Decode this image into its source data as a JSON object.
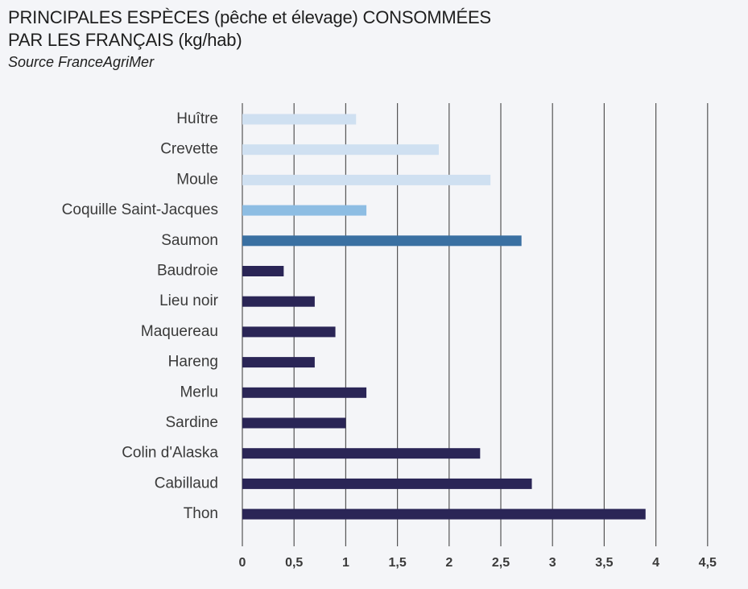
{
  "header": {
    "title_line_1": "PRINCIPALES ESPÈCES (pêche et élevage) CONSOMMÉES",
    "title_line_2": "PAR LES FRANÇAIS (kg/hab)",
    "source": "Source FranceAgriMer"
  },
  "colors": {
    "huitre_crevette_moule": "#cfe0f1",
    "coquille": "#8dbde3",
    "saumon": "#3a70a2",
    "poissons": "#2a2556",
    "grid": "#555555"
  },
  "chart_data": {
    "type": "bar",
    "orientation": "horizontal",
    "title": "PRINCIPALES ESPÈCES (pêche et élevage) CONSOMMÉES PAR LES FRANÇAIS (kg/hab)",
    "subtitle": "Source FranceAgriMer",
    "xlabel": "",
    "ylabel": "",
    "xlim": [
      0,
      4.5
    ],
    "grid": true,
    "x_ticks": [
      "0",
      "0,5",
      "1",
      "1,5",
      "2",
      "2,5",
      "3",
      "3,5",
      "4",
      "4,5"
    ],
    "x_tick_values": [
      0,
      0.5,
      1,
      1.5,
      2,
      2.5,
      3,
      3.5,
      4,
      4.5
    ],
    "categories": [
      "Huître",
      "Crevette",
      "Moule",
      "Coquille Saint-Jacques",
      "Saumon",
      "Baudroie",
      "Lieu noir",
      "Maquereau",
      "Hareng",
      "Merlu",
      "Sardine",
      "Colin d'Alaska",
      "Cabillaud",
      "Thon"
    ],
    "values": [
      1.1,
      1.9,
      2.4,
      1.2,
      2.7,
      0.4,
      0.7,
      0.9,
      0.7,
      1.2,
      1.0,
      2.3,
      2.8,
      3.9
    ],
    "bar_colors": [
      "#cfe0f1",
      "#cfe0f1",
      "#cfe0f1",
      "#8dbde3",
      "#3a70a2",
      "#2a2556",
      "#2a2556",
      "#2a2556",
      "#2a2556",
      "#2a2556",
      "#2a2556",
      "#2a2556",
      "#2a2556",
      "#2a2556"
    ]
  }
}
